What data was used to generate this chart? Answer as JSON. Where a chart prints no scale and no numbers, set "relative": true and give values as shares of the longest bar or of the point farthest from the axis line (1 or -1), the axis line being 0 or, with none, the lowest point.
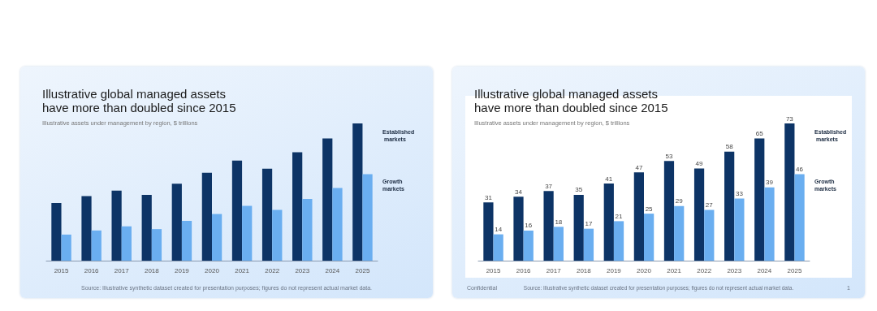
{
  "chart_data": [
    {
      "type": "bar",
      "title": "Illustrative global managed assets have more than doubled since 2015",
      "subtitle": "Illustrative assets under management by region, $ trillions",
      "categories": [
        "2015",
        "2016",
        "2017",
        "2018",
        "2019",
        "2020",
        "2021",
        "2022",
        "2023",
        "2024",
        "2025"
      ],
      "relative": true,
      "series": [
        {
          "name": "Established markets",
          "color": "#0d3466",
          "values": [
            0.42,
            0.47,
            0.51,
            0.48,
            0.56,
            0.64,
            0.73,
            0.67,
            0.79,
            0.89,
            1
          ]
        },
        {
          "name": "Growth markets",
          "color": "#6aaef0",
          "values": [
            0.19,
            0.22,
            0.25,
            0.23,
            0.29,
            0.34,
            0.4,
            0.37,
            0.45,
            0.53,
            0.63
          ]
        }
      ],
      "annotations": [
        "Source: Illustrative synthetic dataset created for presentation purposes; figures do not represent actual market data."
      ],
      "grid": false,
      "legend": false
    },
    {
      "type": "bar",
      "title": "Illustrative global managed assets have more than doubled since 2015",
      "subtitle": "Illustrative assets under management by region, $ trillions",
      "categories": [
        "2015",
        "2016",
        "2017",
        "2018",
        "2019",
        "2020",
        "2021",
        "2022",
        "2023",
        "2024",
        "2025"
      ],
      "data_labels": true,
      "series": [
        {
          "name": "Established markets",
          "color": "#0d3466",
          "values": [
            31,
            34,
            37,
            35,
            41,
            47,
            53,
            49,
            58,
            65,
            73
          ]
        },
        {
          "name": "Growth markets",
          "color": "#6aaef0",
          "values": [
            14,
            16,
            18,
            17,
            21,
            25,
            29,
            27,
            33,
            39,
            46
          ]
        }
      ],
      "tick_labels": "x",
      "annotations": [
        "Confidential",
        "Source: Illustrative synthetic dataset created for presentation purposes; figures do not represent actual market data.",
        "1"
      ],
      "grid": false,
      "legend": false
    }
  ]
}
